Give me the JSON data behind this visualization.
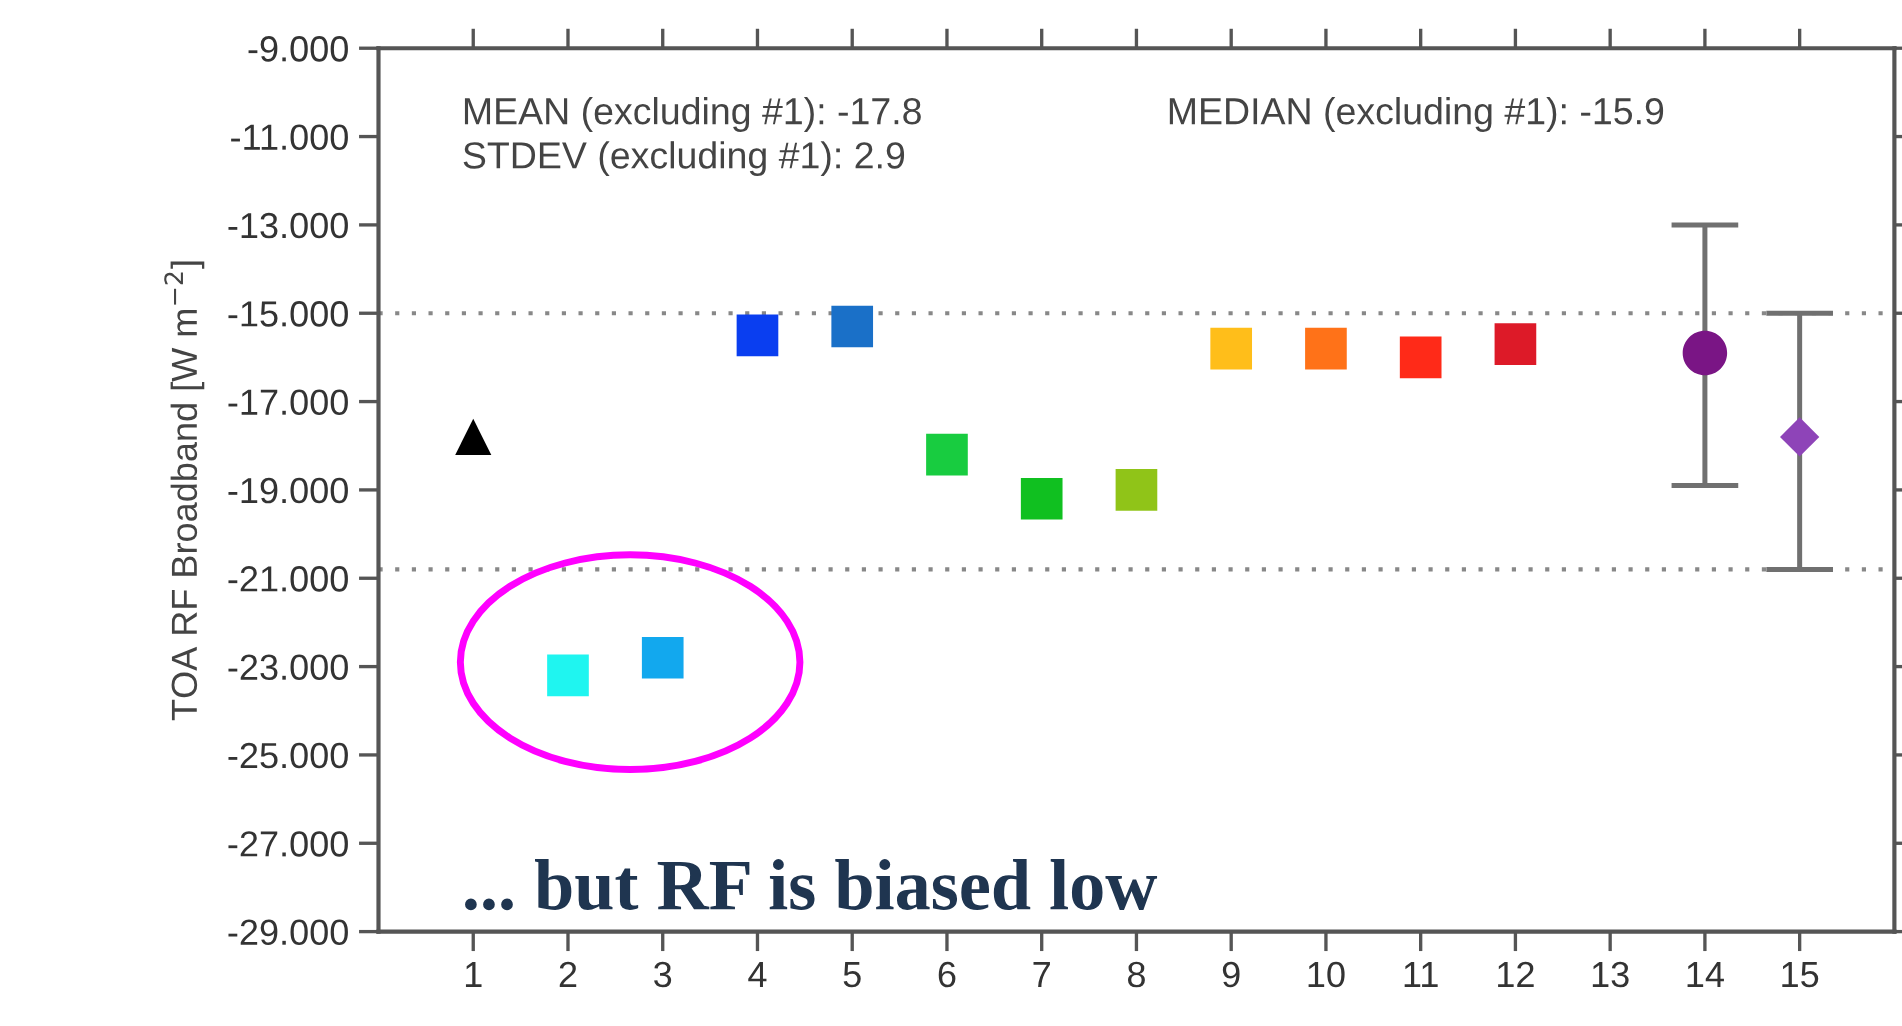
{
  "chart_data": {
    "type": "scatter",
    "ylabel": "TOA RF Broadband [W m$^{−2}$]",
    "xlim": [
      0,
      16
    ],
    "xticks": [
      1,
      2,
      3,
      4,
      5,
      6,
      7,
      8,
      9,
      10,
      11,
      12,
      13,
      14,
      15
    ],
    "ylim": [
      -29,
      -9
    ],
    "yticks": [
      {
        "value": -29,
        "label": "-29.000"
      },
      {
        "value": -27,
        "label": "-27.000"
      },
      {
        "value": -25,
        "label": "-25.000"
      },
      {
        "value": -23,
        "label": "-23.000"
      },
      {
        "value": -21,
        "label": "-21.000"
      },
      {
        "value": -19,
        "label": "-19.000"
      },
      {
        "value": -17,
        "label": "-17.000"
      },
      {
        "value": -15,
        "label": "-15.000"
      },
      {
        "value": -13,
        "label": "-13.000"
      },
      {
        "value": -11,
        "label": "-11.000"
      },
      {
        "value": -9,
        "label": "-9.000"
      }
    ],
    "grid": false,
    "series": [
      {
        "x": [
          1
        ],
        "values": [
          -17.8
        ],
        "color": "#000000",
        "marker": "triangle"
      },
      {
        "x": [
          2,
          3,
          4,
          5,
          6,
          7,
          8,
          9,
          10,
          11,
          12
        ],
        "values": [
          -23.2,
          -22.8,
          -15.5,
          -15.3,
          -18.2,
          -19.2,
          -19.0,
          -15.8,
          -15.8,
          -16.0,
          -15.7
        ],
        "colors": [
          "#1ff5f0",
          "#12a8ee",
          "#0a3ef0",
          "#1a70c8",
          "#18cc40",
          "#10c020",
          "#90c418",
          "#ffbe1a",
          "#ff7218",
          "#ff2a18",
          "#dd1a28"
        ],
        "marker": "square"
      },
      {
        "x": [
          14
        ],
        "values": [
          -15.9
        ],
        "errors": [
          [
            -18.9,
            -13.0
          ]
        ],
        "color": "#7a1585",
        "marker": "circle"
      },
      {
        "x": [
          15
        ],
        "values": [
          -17.8
        ],
        "errors": [
          [
            -20.8,
            -15.0
          ]
        ],
        "color": "#8e44b8",
        "marker": "diamond"
      }
    ],
    "ref_lines": [
      {
        "axis": "y",
        "value": -15.0,
        "color": "#888888",
        "line_style": "dotted"
      },
      {
        "axis": "y",
        "value": -20.8,
        "color": "#888888",
        "line_style": "dotted"
      }
    ],
    "annotations": [
      "MEAN (excluding #1): -17.8",
      "STDEV (excluding #1): 2.9",
      "MEDIAN (excluding #1): -15.9",
      "... but RF is biased low"
    ]
  }
}
